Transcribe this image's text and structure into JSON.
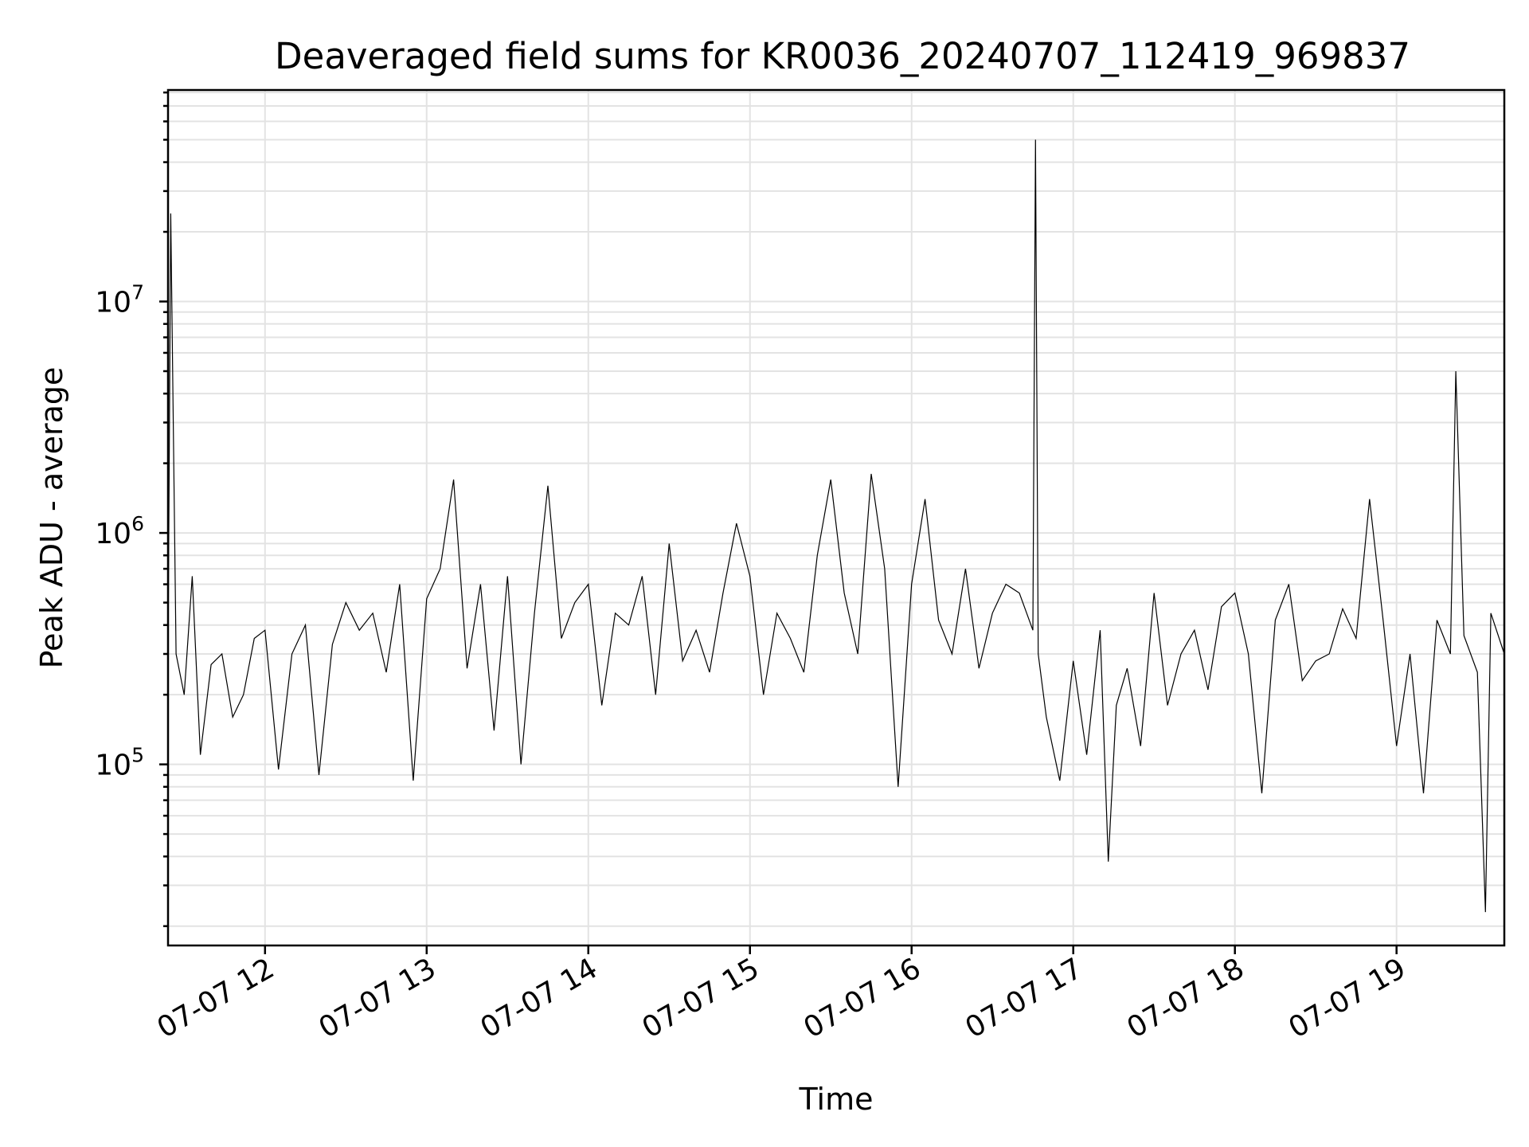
{
  "chart_data": {
    "type": "line",
    "title": "Deaveraged field sums for KR0036_20240707_112419_969837",
    "xlabel": "Time",
    "ylabel": "Peak ADU - average",
    "x_tick_labels": [
      "07-07 12",
      "07-07 13",
      "07-07 14",
      "07-07 15",
      "07-07 16",
      "07-07 17",
      "07-07 18",
      "07-07 19"
    ],
    "y_tick_labels": [
      {
        "base": "10",
        "exp": "5"
      },
      {
        "base": "10",
        "exp": "6"
      },
      {
        "base": "10",
        "exp": "7"
      }
    ],
    "y_scale": "log",
    "ylim": [
      16500,
      82000000
    ],
    "xlim": [
      "2024-07-07 11:24",
      "2024-07-07 19:40"
    ],
    "grid": true,
    "line_color": "#000000",
    "series": [
      {
        "x": [
          "2024-07-07 11:24",
          "2024-07-07 11:25",
          "2024-07-07 11:27",
          "2024-07-07 11:30",
          "2024-07-07 11:33",
          "2024-07-07 11:36",
          "2024-07-07 11:40",
          "2024-07-07 11:44",
          "2024-07-07 11:48",
          "2024-07-07 11:52",
          "2024-07-07 11:56",
          "2024-07-07 12:00",
          "2024-07-07 12:05",
          "2024-07-07 12:10",
          "2024-07-07 12:15",
          "2024-07-07 12:20",
          "2024-07-07 12:25",
          "2024-07-07 12:30",
          "2024-07-07 12:35",
          "2024-07-07 12:40",
          "2024-07-07 12:45",
          "2024-07-07 12:50",
          "2024-07-07 12:55",
          "2024-07-07 13:00",
          "2024-07-07 13:05",
          "2024-07-07 13:10",
          "2024-07-07 13:15",
          "2024-07-07 13:20",
          "2024-07-07 13:25",
          "2024-07-07 13:30",
          "2024-07-07 13:35",
          "2024-07-07 13:40",
          "2024-07-07 13:45",
          "2024-07-07 13:50",
          "2024-07-07 13:55",
          "2024-07-07 14:00",
          "2024-07-07 14:05",
          "2024-07-07 14:10",
          "2024-07-07 14:15",
          "2024-07-07 14:20",
          "2024-07-07 14:25",
          "2024-07-07 14:30",
          "2024-07-07 14:35",
          "2024-07-07 14:40",
          "2024-07-07 14:45",
          "2024-07-07 14:50",
          "2024-07-07 14:55",
          "2024-07-07 15:00",
          "2024-07-07 15:05",
          "2024-07-07 15:10",
          "2024-07-07 15:15",
          "2024-07-07 15:20",
          "2024-07-07 15:25",
          "2024-07-07 15:30",
          "2024-07-07 15:35",
          "2024-07-07 15:40",
          "2024-07-07 15:45",
          "2024-07-07 15:50",
          "2024-07-07 15:55",
          "2024-07-07 16:00",
          "2024-07-07 16:05",
          "2024-07-07 16:10",
          "2024-07-07 16:15",
          "2024-07-07 16:20",
          "2024-07-07 16:25",
          "2024-07-07 16:30",
          "2024-07-07 16:35",
          "2024-07-07 16:40",
          "2024-07-07 16:45",
          "2024-07-07 16:46",
          "2024-07-07 16:47",
          "2024-07-07 16:50",
          "2024-07-07 16:55",
          "2024-07-07 17:00",
          "2024-07-07 17:05",
          "2024-07-07 17:10",
          "2024-07-07 17:13",
          "2024-07-07 17:16",
          "2024-07-07 17:20",
          "2024-07-07 17:25",
          "2024-07-07 17:30",
          "2024-07-07 17:35",
          "2024-07-07 17:40",
          "2024-07-07 17:45",
          "2024-07-07 17:50",
          "2024-07-07 17:55",
          "2024-07-07 18:00",
          "2024-07-07 18:05",
          "2024-07-07 18:10",
          "2024-07-07 18:15",
          "2024-07-07 18:20",
          "2024-07-07 18:25",
          "2024-07-07 18:30",
          "2024-07-07 18:35",
          "2024-07-07 18:40",
          "2024-07-07 18:45",
          "2024-07-07 18:50",
          "2024-07-07 18:55",
          "2024-07-07 19:00",
          "2024-07-07 19:05",
          "2024-07-07 19:10",
          "2024-07-07 19:15",
          "2024-07-07 19:20",
          "2024-07-07 19:22",
          "2024-07-07 19:25",
          "2024-07-07 19:30",
          "2024-07-07 19:33",
          "2024-07-07 19:35",
          "2024-07-07 19:40"
        ],
        "y": [
          280000,
          24000000,
          300000,
          200000,
          650000,
          110000,
          270000,
          300000,
          160000,
          200000,
          350000,
          380000,
          95000,
          300000,
          400000,
          90000,
          330000,
          500000,
          380000,
          450000,
          250000,
          600000,
          85000,
          520000,
          700000,
          1700000,
          260000,
          600000,
          140000,
          650000,
          100000,
          450000,
          1600000,
          350000,
          500000,
          600000,
          180000,
          450000,
          400000,
          650000,
          200000,
          900000,
          280000,
          380000,
          250000,
          550000,
          1100000,
          650000,
          200000,
          450000,
          350000,
          250000,
          800000,
          1700000,
          550000,
          300000,
          1800000,
          700000,
          80000,
          600000,
          1400000,
          420000,
          300000,
          700000,
          260000,
          450000,
          600000,
          550000,
          380000,
          50000000,
          300000,
          160000,
          85000,
          280000,
          110000,
          380000,
          38000,
          180000,
          260000,
          120000,
          550000,
          180000,
          300000,
          380000,
          210000,
          480000,
          550000,
          300000,
          75000,
          420000,
          600000,
          230000,
          280000,
          300000,
          470000,
          350000,
          1400000,
          420000,
          120000,
          300000,
          75000,
          420000,
          300000,
          5000000,
          360000,
          250000,
          23000,
          450000,
          300000
        ]
      }
    ]
  }
}
